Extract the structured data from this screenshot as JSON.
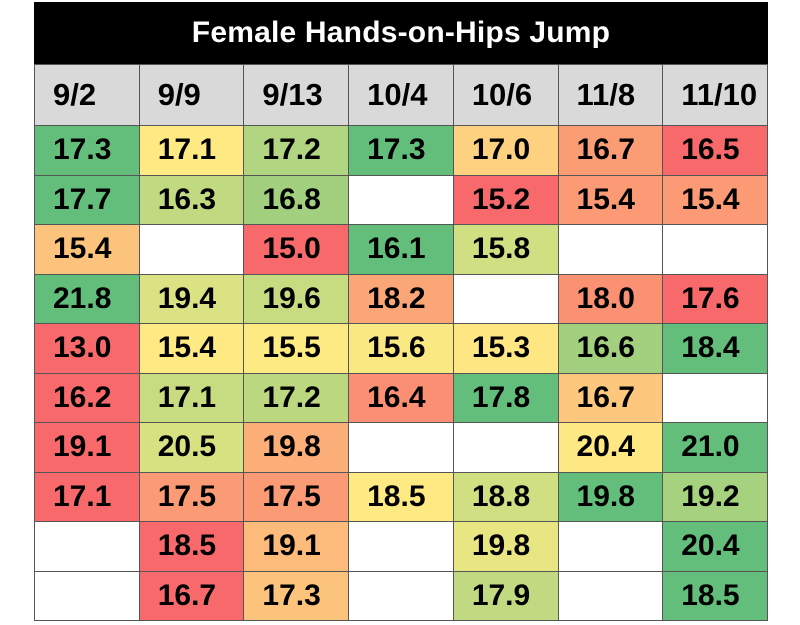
{
  "chart_data": {
    "type": "table",
    "title": "Female Hands-on-Hips Jump",
    "columns": [
      "9/2",
      "9/9",
      "9/13",
      "10/4",
      "10/6",
      "11/8",
      "11/10"
    ],
    "rows": [
      [
        "17.3",
        "17.1",
        "17.2",
        "17.3",
        "17.0",
        "16.7",
        "16.5"
      ],
      [
        "17.7",
        "16.3",
        "16.8",
        "",
        "15.2",
        "15.4",
        "15.4"
      ],
      [
        "15.4",
        "",
        "15.0",
        "16.1",
        "15.8",
        "",
        ""
      ],
      [
        "21.8",
        "19.4",
        "19.6",
        "18.2",
        "",
        "18.0",
        "17.6"
      ],
      [
        "13.0",
        "15.4",
        "15.5",
        "15.6",
        "15.3",
        "16.6",
        "18.4"
      ],
      [
        "16.2",
        "17.1",
        "17.2",
        "16.4",
        "17.8",
        "16.7",
        ""
      ],
      [
        "19.1",
        "20.5",
        "19.8",
        "",
        "",
        "20.4",
        "21.0"
      ],
      [
        "17.1",
        "17.5",
        "17.5",
        "18.5",
        "18.8",
        "19.8",
        "19.2"
      ],
      [
        "",
        "18.5",
        "19.1",
        "",
        "19.8",
        "",
        "20.4"
      ],
      [
        "",
        "16.7",
        "17.3",
        "",
        "17.9",
        "",
        "18.5"
      ]
    ],
    "cell_colors": [
      [
        "#63be7b",
        "#fee983",
        "#b1d580",
        "#63be7b",
        "#fdd17f",
        "#fa9d75",
        "#f8696b"
      ],
      [
        "#63be7b",
        "#c1da81",
        "#a2d07f",
        "",
        "#f8696b",
        "#fb9a74",
        "#fb9a74"
      ],
      [
        "#fcc37c",
        "",
        "#f8696b",
        "#63be7b",
        "#cfdf82",
        "",
        ""
      ],
      [
        "#63be7b",
        "#dbe283",
        "#c7dc81",
        "#fba677",
        "",
        "#fa9173",
        "#f8696b"
      ],
      [
        "#f8696b",
        "#fee983",
        "#feea83",
        "#fae883",
        "#fee683",
        "#a2d07f",
        "#63be7b"
      ],
      [
        "#f8696b",
        "#c7dc81",
        "#bbd881",
        "#fa8f73",
        "#63be7b",
        "#fdc77d",
        ""
      ],
      [
        "#f8696b",
        "#d8e182",
        "#fcae79",
        "",
        "",
        "#fde883",
        "#63be7b"
      ],
      [
        "#f8696b",
        "#fa9b75",
        "#fa9b75",
        "#fee983",
        "#cfdf82",
        "#63be7b",
        "#a6d27f"
      ],
      [
        "",
        "#f8696b",
        "#fcbb7b",
        "",
        "#e8e683",
        "",
        "#63be7b"
      ],
      [
        "",
        "#f8696b",
        "#fcc37c",
        "",
        "#c1da81",
        "",
        "#63be7b"
      ]
    ],
    "header_color": "#d9d9d9",
    "title_bar_color": "#000000"
  }
}
